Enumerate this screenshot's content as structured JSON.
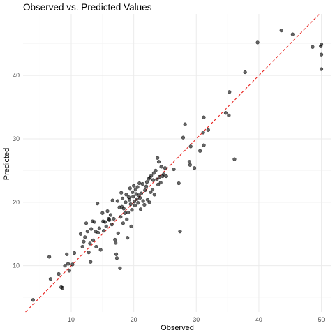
{
  "chart_data": {
    "type": "scatter",
    "title": "Observed vs. Predicted Values",
    "xlabel": "Observed",
    "ylabel": "Predicted",
    "xlim": [
      2.3,
      51.5
    ],
    "ylim": [
      2.7,
      49.7
    ],
    "x_ticks": [
      10,
      20,
      30,
      40,
      50
    ],
    "y_ticks": [
      10,
      20,
      30,
      40
    ],
    "grid": true,
    "reference_line": {
      "slope": 1,
      "intercept": 0,
      "color": "#e8211d",
      "style": "dashed"
    },
    "point_color": "#000000",
    "points": [
      [
        3.9,
        4.6
      ],
      [
        6.5,
        11.4
      ],
      [
        6.7,
        7.9
      ],
      [
        8.0,
        8.7
      ],
      [
        8.4,
        6.6
      ],
      [
        8.6,
        6.5
      ],
      [
        9.0,
        10.0
      ],
      [
        9.3,
        11.8
      ],
      [
        9.5,
        10.3
      ],
      [
        9.7,
        9.2
      ],
      [
        10.2,
        10.2
      ],
      [
        10.5,
        12.0
      ],
      [
        11.5,
        15.0
      ],
      [
        11.8,
        13.0
      ],
      [
        12.0,
        13.8
      ],
      [
        12.2,
        14.5
      ],
      [
        12.4,
        16.7
      ],
      [
        12.6,
        15.4
      ],
      [
        12.8,
        12.1
      ],
      [
        13.0,
        13.5
      ],
      [
        13.1,
        10.6
      ],
      [
        13.2,
        15.8
      ],
      [
        13.4,
        17.0
      ],
      [
        13.5,
        14.0
      ],
      [
        13.7,
        16.9
      ],
      [
        13.9,
        15.4
      ],
      [
        14.0,
        13.0
      ],
      [
        14.2,
        19.8
      ],
      [
        14.3,
        15.2
      ],
      [
        14.5,
        15.9
      ],
      [
        14.7,
        12.5
      ],
      [
        15.0,
        18.3
      ],
      [
        15.1,
        17.0
      ],
      [
        15.2,
        15.5
      ],
      [
        15.4,
        16.9
      ],
      [
        15.6,
        16.2
      ],
      [
        15.8,
        18.6
      ],
      [
        16.0,
        17.4
      ],
      [
        16.1,
        17.2
      ],
      [
        16.3,
        18.0
      ],
      [
        16.5,
        16.5
      ],
      [
        16.6,
        20.3
      ],
      [
        16.8,
        17.4
      ],
      [
        17.0,
        14.1
      ],
      [
        17.1,
        13.6
      ],
      [
        17.2,
        11.8
      ],
      [
        17.3,
        11.2
      ],
      [
        17.4,
        20.2
      ],
      [
        17.5,
        15.1
      ],
      [
        17.7,
        19.2
      ],
      [
        17.8,
        9.6
      ],
      [
        17.9,
        17.7
      ],
      [
        18.0,
        21.5
      ],
      [
        18.1,
        19.3
      ],
      [
        18.2,
        20.6
      ],
      [
        18.3,
        16.7
      ],
      [
        18.4,
        19.0
      ],
      [
        18.6,
        18.3
      ],
      [
        18.7,
        20.0
      ],
      [
        18.8,
        21.2
      ],
      [
        18.9,
        17.3
      ],
      [
        19.0,
        14.4
      ],
      [
        19.1,
        18.4
      ],
      [
        19.2,
        20.8
      ],
      [
        19.3,
        20.4
      ],
      [
        19.4,
        22.2
      ],
      [
        19.5,
        19.7
      ],
      [
        19.6,
        16.2
      ],
      [
        19.7,
        18.8
      ],
      [
        19.8,
        21.6
      ],
      [
        19.9,
        20.9
      ],
      [
        20.0,
        22.6
      ],
      [
        20.1,
        20.1
      ],
      [
        20.2,
        19.5
      ],
      [
        20.3,
        22.0
      ],
      [
        20.4,
        21.3
      ],
      [
        20.5,
        20.5
      ],
      [
        20.6,
        22.4
      ],
      [
        20.7,
        19.9
      ],
      [
        20.8,
        21.1
      ],
      [
        20.9,
        23.0
      ],
      [
        21.0,
        20.7
      ],
      [
        21.1,
        18.9
      ],
      [
        21.2,
        21.4
      ],
      [
        21.4,
        22.9
      ],
      [
        21.5,
        20.2
      ],
      [
        21.7,
        19.6
      ],
      [
        21.8,
        21.9
      ],
      [
        22.0,
        22.5
      ],
      [
        22.1,
        23.2
      ],
      [
        22.2,
        20.4
      ],
      [
        22.4,
        23.7
      ],
      [
        22.5,
        20.0
      ],
      [
        22.6,
        23.9
      ],
      [
        22.7,
        21.6
      ],
      [
        22.8,
        24.2
      ],
      [
        23.0,
        22.0
      ],
      [
        23.1,
        23.5
      ],
      [
        23.2,
        24.6
      ],
      [
        23.3,
        21.2
      ],
      [
        23.5,
        25.0
      ],
      [
        23.7,
        23.6
      ],
      [
        23.8,
        27.0
      ],
      [
        23.9,
        22.8
      ],
      [
        24.0,
        26.4
      ],
      [
        24.1,
        24.0
      ],
      [
        24.3,
        23.1
      ],
      [
        24.4,
        25.6
      ],
      [
        24.6,
        24.1
      ],
      [
        24.8,
        24.4
      ],
      [
        25.0,
        25.4
      ],
      [
        25.2,
        24.1
      ],
      [
        26.4,
        25.2
      ],
      [
        27.2,
        23.0
      ],
      [
        27.4,
        15.4
      ],
      [
        27.9,
        30.2
      ],
      [
        28.2,
        32.3
      ],
      [
        28.9,
        26.4
      ],
      [
        29.0,
        25.9
      ],
      [
        29.1,
        28.8
      ],
      [
        29.7,
        25.4
      ],
      [
        30.6,
        28.1
      ],
      [
        31.2,
        29.0
      ],
      [
        31.2,
        33.4
      ],
      [
        31.1,
        31.0
      ],
      [
        31.9,
        31.4
      ],
      [
        34.7,
        34.1
      ],
      [
        35.2,
        33.7
      ],
      [
        35.3,
        37.4
      ],
      [
        36.1,
        26.8
      ],
      [
        37.8,
        40.5
      ],
      [
        39.8,
        45.2
      ],
      [
        43.6,
        47.1
      ],
      [
        45.4,
        46.5
      ],
      [
        48.6,
        44.5
      ],
      [
        49.9,
        44.6
      ],
      [
        50.0,
        43.3
      ],
      [
        50.0,
        41.0
      ],
      [
        50.0,
        44.9
      ]
    ]
  }
}
